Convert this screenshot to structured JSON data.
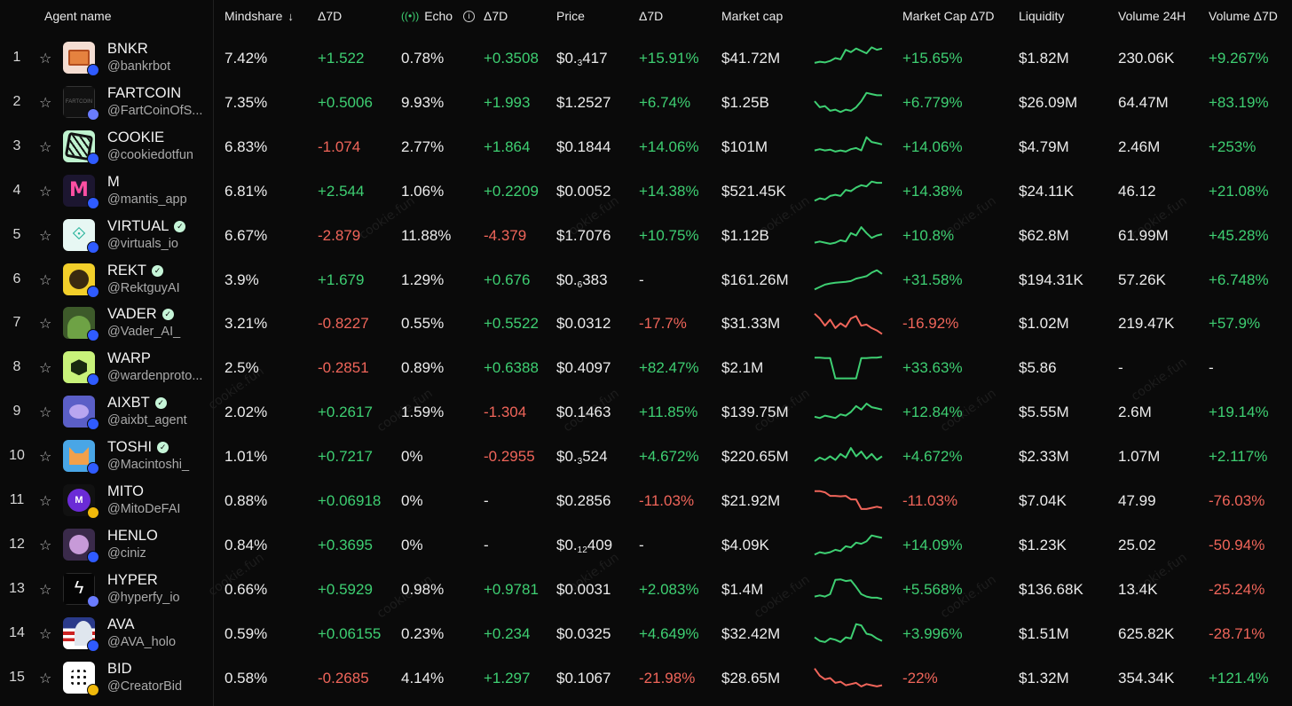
{
  "headers": {
    "agent": "Agent name",
    "mindshare": "Mindshare",
    "d7": "Δ7D",
    "echo": "Echo",
    "price": "Price",
    "market_cap": "Market cap",
    "mcap_d7": "Market Cap Δ7D",
    "liquidity": "Liquidity",
    "volume": "Volume 24H",
    "volume_d7": "Volume Δ7D"
  },
  "watermark": "cookie.fun",
  "colors": {
    "positive": "#3ecf72",
    "negative": "#f0655a",
    "background": "#0a0a0a"
  },
  "rows": [
    {
      "rank": "1",
      "name": "BNKR",
      "handle": "@bankrbot",
      "verified": false,
      "chain": "base",
      "mindshare": "7.42%",
      "mindshare_d7": "+1.522",
      "echo": "0.78%",
      "echo_d7": "+0.3508",
      "price_pre": "$0.",
      "price_sub": "3",
      "price_post": "417",
      "price_d7": "+15.91%",
      "mcap": "$41.72M",
      "mcap_d7": "+15.65%",
      "liquidity": "$1.82M",
      "volume": "230.06K",
      "volume_d7": "+9.267%",
      "spark": [
        0.3,
        0.35,
        0.32,
        0.38,
        0.5,
        0.45,
        0.85,
        0.75,
        0.9,
        0.8,
        0.7,
        0.95,
        0.85,
        0.9
      ],
      "avatar": "bnkr"
    },
    {
      "rank": "2",
      "name": "FARTCOIN",
      "handle": "@FartCoinOfS...",
      "verified": false,
      "chain": "solana",
      "mindshare": "7.35%",
      "mindshare_d7": "+0.5006",
      "echo": "9.93%",
      "echo_d7": "+1.993",
      "price_pre": "$1.2527",
      "price_sub": "",
      "price_post": "",
      "price_d7": "+6.74%",
      "mcap": "$1.25B",
      "mcap_d7": "+6.779%",
      "liquidity": "$26.09M",
      "volume": "64.47M",
      "volume_d7": "+83.19%",
      "spark": [
        0.55,
        0.3,
        0.35,
        0.15,
        0.2,
        0.1,
        0.2,
        0.15,
        0.3,
        0.55,
        0.9,
        0.85,
        0.8,
        0.8
      ],
      "avatar": "fart"
    },
    {
      "rank": "3",
      "name": "COOKIE",
      "handle": "@cookiedotfun",
      "verified": false,
      "chain": "base",
      "mindshare": "6.83%",
      "mindshare_d7": "-1.074",
      "echo": "2.77%",
      "echo_d7": "+1.864",
      "price_pre": "$0.1844",
      "price_sub": "",
      "price_post": "",
      "price_d7": "+14.06%",
      "mcap": "$101M",
      "mcap_d7": "+14.06%",
      "liquidity": "$4.79M",
      "volume": "2.46M",
      "volume_d7": "+253%",
      "spark": [
        0.35,
        0.4,
        0.35,
        0.38,
        0.3,
        0.35,
        0.3,
        0.4,
        0.45,
        0.35,
        0.9,
        0.7,
        0.65,
        0.6
      ],
      "avatar": "cookie"
    },
    {
      "rank": "4",
      "name": "M",
      "handle": "@mantis_app",
      "verified": false,
      "chain": "base",
      "mindshare": "6.81%",
      "mindshare_d7": "+2.544",
      "echo": "1.06%",
      "echo_d7": "+0.2209",
      "price_pre": "$0.0052",
      "price_sub": "",
      "price_post": "",
      "price_d7": "+14.38%",
      "mcap": "$521.45K",
      "mcap_d7": "+14.38%",
      "liquidity": "$24.11K",
      "volume": "46.12",
      "volume_d7": "+21.08%",
      "spark": [
        0.1,
        0.2,
        0.15,
        0.3,
        0.35,
        0.3,
        0.55,
        0.5,
        0.65,
        0.75,
        0.7,
        0.9,
        0.85,
        0.85
      ],
      "avatar": "m"
    },
    {
      "rank": "5",
      "name": "VIRTUAL",
      "handle": "@virtuals_io",
      "verified": true,
      "chain": "base",
      "mindshare": "6.67%",
      "mindshare_d7": "-2.879",
      "echo": "11.88%",
      "echo_d7": "-4.379",
      "price_pre": "$1.7076",
      "price_sub": "",
      "price_post": "",
      "price_d7": "+10.75%",
      "mcap": "$1.12B",
      "mcap_d7": "+10.8%",
      "liquidity": "$62.8M",
      "volume": "61.99M",
      "volume_d7": "+45.28%",
      "spark": [
        0.2,
        0.25,
        0.2,
        0.15,
        0.2,
        0.3,
        0.25,
        0.6,
        0.5,
        0.85,
        0.6,
        0.4,
        0.5,
        0.55
      ],
      "avatar": "virtual"
    },
    {
      "rank": "6",
      "name": "REKT",
      "handle": "@RektguyAI",
      "verified": true,
      "chain": "base",
      "mindshare": "3.9%",
      "mindshare_d7": "+1.679",
      "echo": "1.29%",
      "echo_d7": "+0.676",
      "price_pre": "$0.",
      "price_sub": "6",
      "price_post": "383",
      "price_d7": "-",
      "mcap": "$161.26M",
      "mcap_d7": "+31.58%",
      "liquidity": "$194.31K",
      "volume": "57.26K",
      "volume_d7": "+6.748%",
      "spark": [
        0.1,
        0.2,
        0.3,
        0.35,
        0.38,
        0.4,
        0.42,
        0.45,
        0.55,
        0.6,
        0.65,
        0.8,
        0.9,
        0.75
      ],
      "avatar": "rekt"
    },
    {
      "rank": "7",
      "name": "VADER",
      "handle": "@Vader_AI_",
      "verified": true,
      "chain": "base",
      "mindshare": "3.21%",
      "mindshare_d7": "-0.8227",
      "echo": "0.55%",
      "echo_d7": "+0.5522",
      "price_pre": "$0.0312",
      "price_sub": "",
      "price_post": "",
      "price_d7": "-17.7%",
      "mcap": "$31.33M",
      "mcap_d7": "-16.92%",
      "liquidity": "$1.02M",
      "volume": "219.47K",
      "volume_d7": "+57.9%",
      "spark": [
        0.9,
        0.7,
        0.4,
        0.65,
        0.3,
        0.5,
        0.35,
        0.7,
        0.8,
        0.4,
        0.45,
        0.3,
        0.2,
        0.05
      ],
      "avatar": "vader"
    },
    {
      "rank": "8",
      "name": "WARP",
      "handle": "@wardenproto...",
      "verified": false,
      "chain": "base",
      "mindshare": "2.5%",
      "mindshare_d7": "-0.2851",
      "echo": "0.89%",
      "echo_d7": "+0.6388",
      "price_pre": "$0.4097",
      "price_sub": "",
      "price_post": "",
      "price_d7": "+82.47%",
      "mcap": "$2.1M",
      "mcap_d7": "+33.63%",
      "liquidity": "$5.86",
      "volume": "-",
      "volume_d7": "-",
      "spark": [
        0.92,
        0.92,
        0.9,
        0.9,
        0.05,
        0.05,
        0.05,
        0.05,
        0.05,
        0.9,
        0.9,
        0.92,
        0.92,
        0.95
      ],
      "avatar": "warp"
    },
    {
      "rank": "9",
      "name": "AIXBT",
      "handle": "@aixbt_agent",
      "verified": true,
      "chain": "base",
      "mindshare": "2.02%",
      "mindshare_d7": "+0.2617",
      "echo": "1.59%",
      "echo_d7": "-1.304",
      "price_pre": "$0.1463",
      "price_sub": "",
      "price_post": "",
      "price_d7": "+11.85%",
      "mcap": "$139.75M",
      "mcap_d7": "+12.84%",
      "liquidity": "$5.55M",
      "volume": "2.6M",
      "volume_d7": "+19.14%",
      "spark": [
        0.3,
        0.25,
        0.35,
        0.3,
        0.25,
        0.4,
        0.35,
        0.5,
        0.75,
        0.6,
        0.85,
        0.7,
        0.65,
        0.6
      ],
      "avatar": "aixbt"
    },
    {
      "rank": "10",
      "name": "TOSHI",
      "handle": "@Macintoshi_",
      "verified": true,
      "chain": "base",
      "mindshare": "1.01%",
      "mindshare_d7": "+0.7217",
      "echo": "0%",
      "echo_d7": "-0.2955",
      "price_pre": "$0.",
      "price_sub": "3",
      "price_post": "524",
      "price_d7": "+4.672%",
      "mcap": "$220.65M",
      "mcap_d7": "+4.672%",
      "liquidity": "$2.33M",
      "volume": "1.07M",
      "volume_d7": "+2.117%",
      "spark": [
        0.3,
        0.45,
        0.35,
        0.5,
        0.35,
        0.6,
        0.45,
        0.85,
        0.5,
        0.7,
        0.4,
        0.6,
        0.35,
        0.5
      ],
      "avatar": "toshi"
    },
    {
      "rank": "11",
      "name": "MITO",
      "handle": "@MitoDeFAI",
      "verified": false,
      "chain": "bsc",
      "mindshare": "0.88%",
      "mindshare_d7": "+0.06918",
      "echo": "0%",
      "echo_d7": "-",
      "price_pre": "$0.2856",
      "price_sub": "",
      "price_post": "",
      "price_d7": "-11.03%",
      "mcap": "$21.92M",
      "mcap_d7": "-11.03%",
      "liquidity": "$7.04K",
      "volume": "47.99",
      "volume_d7": "-76.03%",
      "spark": [
        0.9,
        0.9,
        0.85,
        0.7,
        0.7,
        0.68,
        0.7,
        0.55,
        0.55,
        0.15,
        0.15,
        0.2,
        0.25,
        0.2
      ],
      "avatar": "mito"
    },
    {
      "rank": "12",
      "name": "HENLO",
      "handle": "@ciniz",
      "verified": false,
      "chain": "base",
      "mindshare": "0.84%",
      "mindshare_d7": "+0.3695",
      "echo": "0%",
      "echo_d7": "-",
      "price_pre": "$0.",
      "price_sub": "12",
      "price_post": "409",
      "price_d7": "-",
      "mcap": "$4.09K",
      "mcap_d7": "+14.09%",
      "liquidity": "$1.23K",
      "volume": "25.02",
      "volume_d7": "-50.94%",
      "spark": [
        0.1,
        0.2,
        0.15,
        0.2,
        0.3,
        0.25,
        0.45,
        0.4,
        0.6,
        0.55,
        0.65,
        0.9,
        0.85,
        0.8
      ],
      "avatar": "henlo"
    },
    {
      "rank": "13",
      "name": "HYPER",
      "handle": "@hyperfy_io",
      "verified": false,
      "chain": "solana",
      "mindshare": "0.66%",
      "mindshare_d7": "+0.5929",
      "echo": "0.98%",
      "echo_d7": "+0.9781",
      "price_pre": "$0.0031",
      "price_sub": "",
      "price_post": "",
      "price_d7": "+2.083%",
      "mcap": "$1.4M",
      "mcap_d7": "+5.568%",
      "liquidity": "$136.68K",
      "volume": "13.4K",
      "volume_d7": "-25.24%",
      "spark": [
        0.2,
        0.25,
        0.2,
        0.3,
        0.9,
        0.92,
        0.85,
        0.88,
        0.6,
        0.3,
        0.2,
        0.15,
        0.15,
        0.1
      ],
      "avatar": "hyper"
    },
    {
      "rank": "14",
      "name": "AVA",
      "handle": "@AVA_holo",
      "verified": false,
      "chain": "base",
      "mindshare": "0.59%",
      "mindshare_d7": "+0.06155",
      "echo": "0.23%",
      "echo_d7": "+0.234",
      "price_pre": "$0.0325",
      "price_sub": "",
      "price_post": "",
      "price_d7": "+4.649%",
      "mcap": "$32.42M",
      "mcap_d7": "+3.996%",
      "liquidity": "$1.51M",
      "volume": "625.82K",
      "volume_d7": "-28.71%",
      "spark": [
        0.35,
        0.2,
        0.15,
        0.3,
        0.25,
        0.15,
        0.35,
        0.3,
        0.9,
        0.85,
        0.5,
        0.45,
        0.3,
        0.2
      ],
      "avatar": "ava"
    },
    {
      "rank": "15",
      "name": "BID",
      "handle": "@CreatorBid",
      "verified": false,
      "chain": "bsc",
      "mindshare": "0.58%",
      "mindshare_d7": "-0.2685",
      "echo": "4.14%",
      "echo_d7": "+1.297",
      "price_pre": "$0.1067",
      "price_sub": "",
      "price_post": "",
      "price_d7": "-21.98%",
      "mcap": "$28.65M",
      "mcap_d7": "-22%",
      "liquidity": "$1.32M",
      "volume": "354.34K",
      "volume_d7": "+121.4%",
      "spark": [
        0.9,
        0.6,
        0.45,
        0.5,
        0.3,
        0.35,
        0.2,
        0.25,
        0.3,
        0.15,
        0.25,
        0.2,
        0.15,
        0.2
      ],
      "avatar": "bid"
    }
  ]
}
